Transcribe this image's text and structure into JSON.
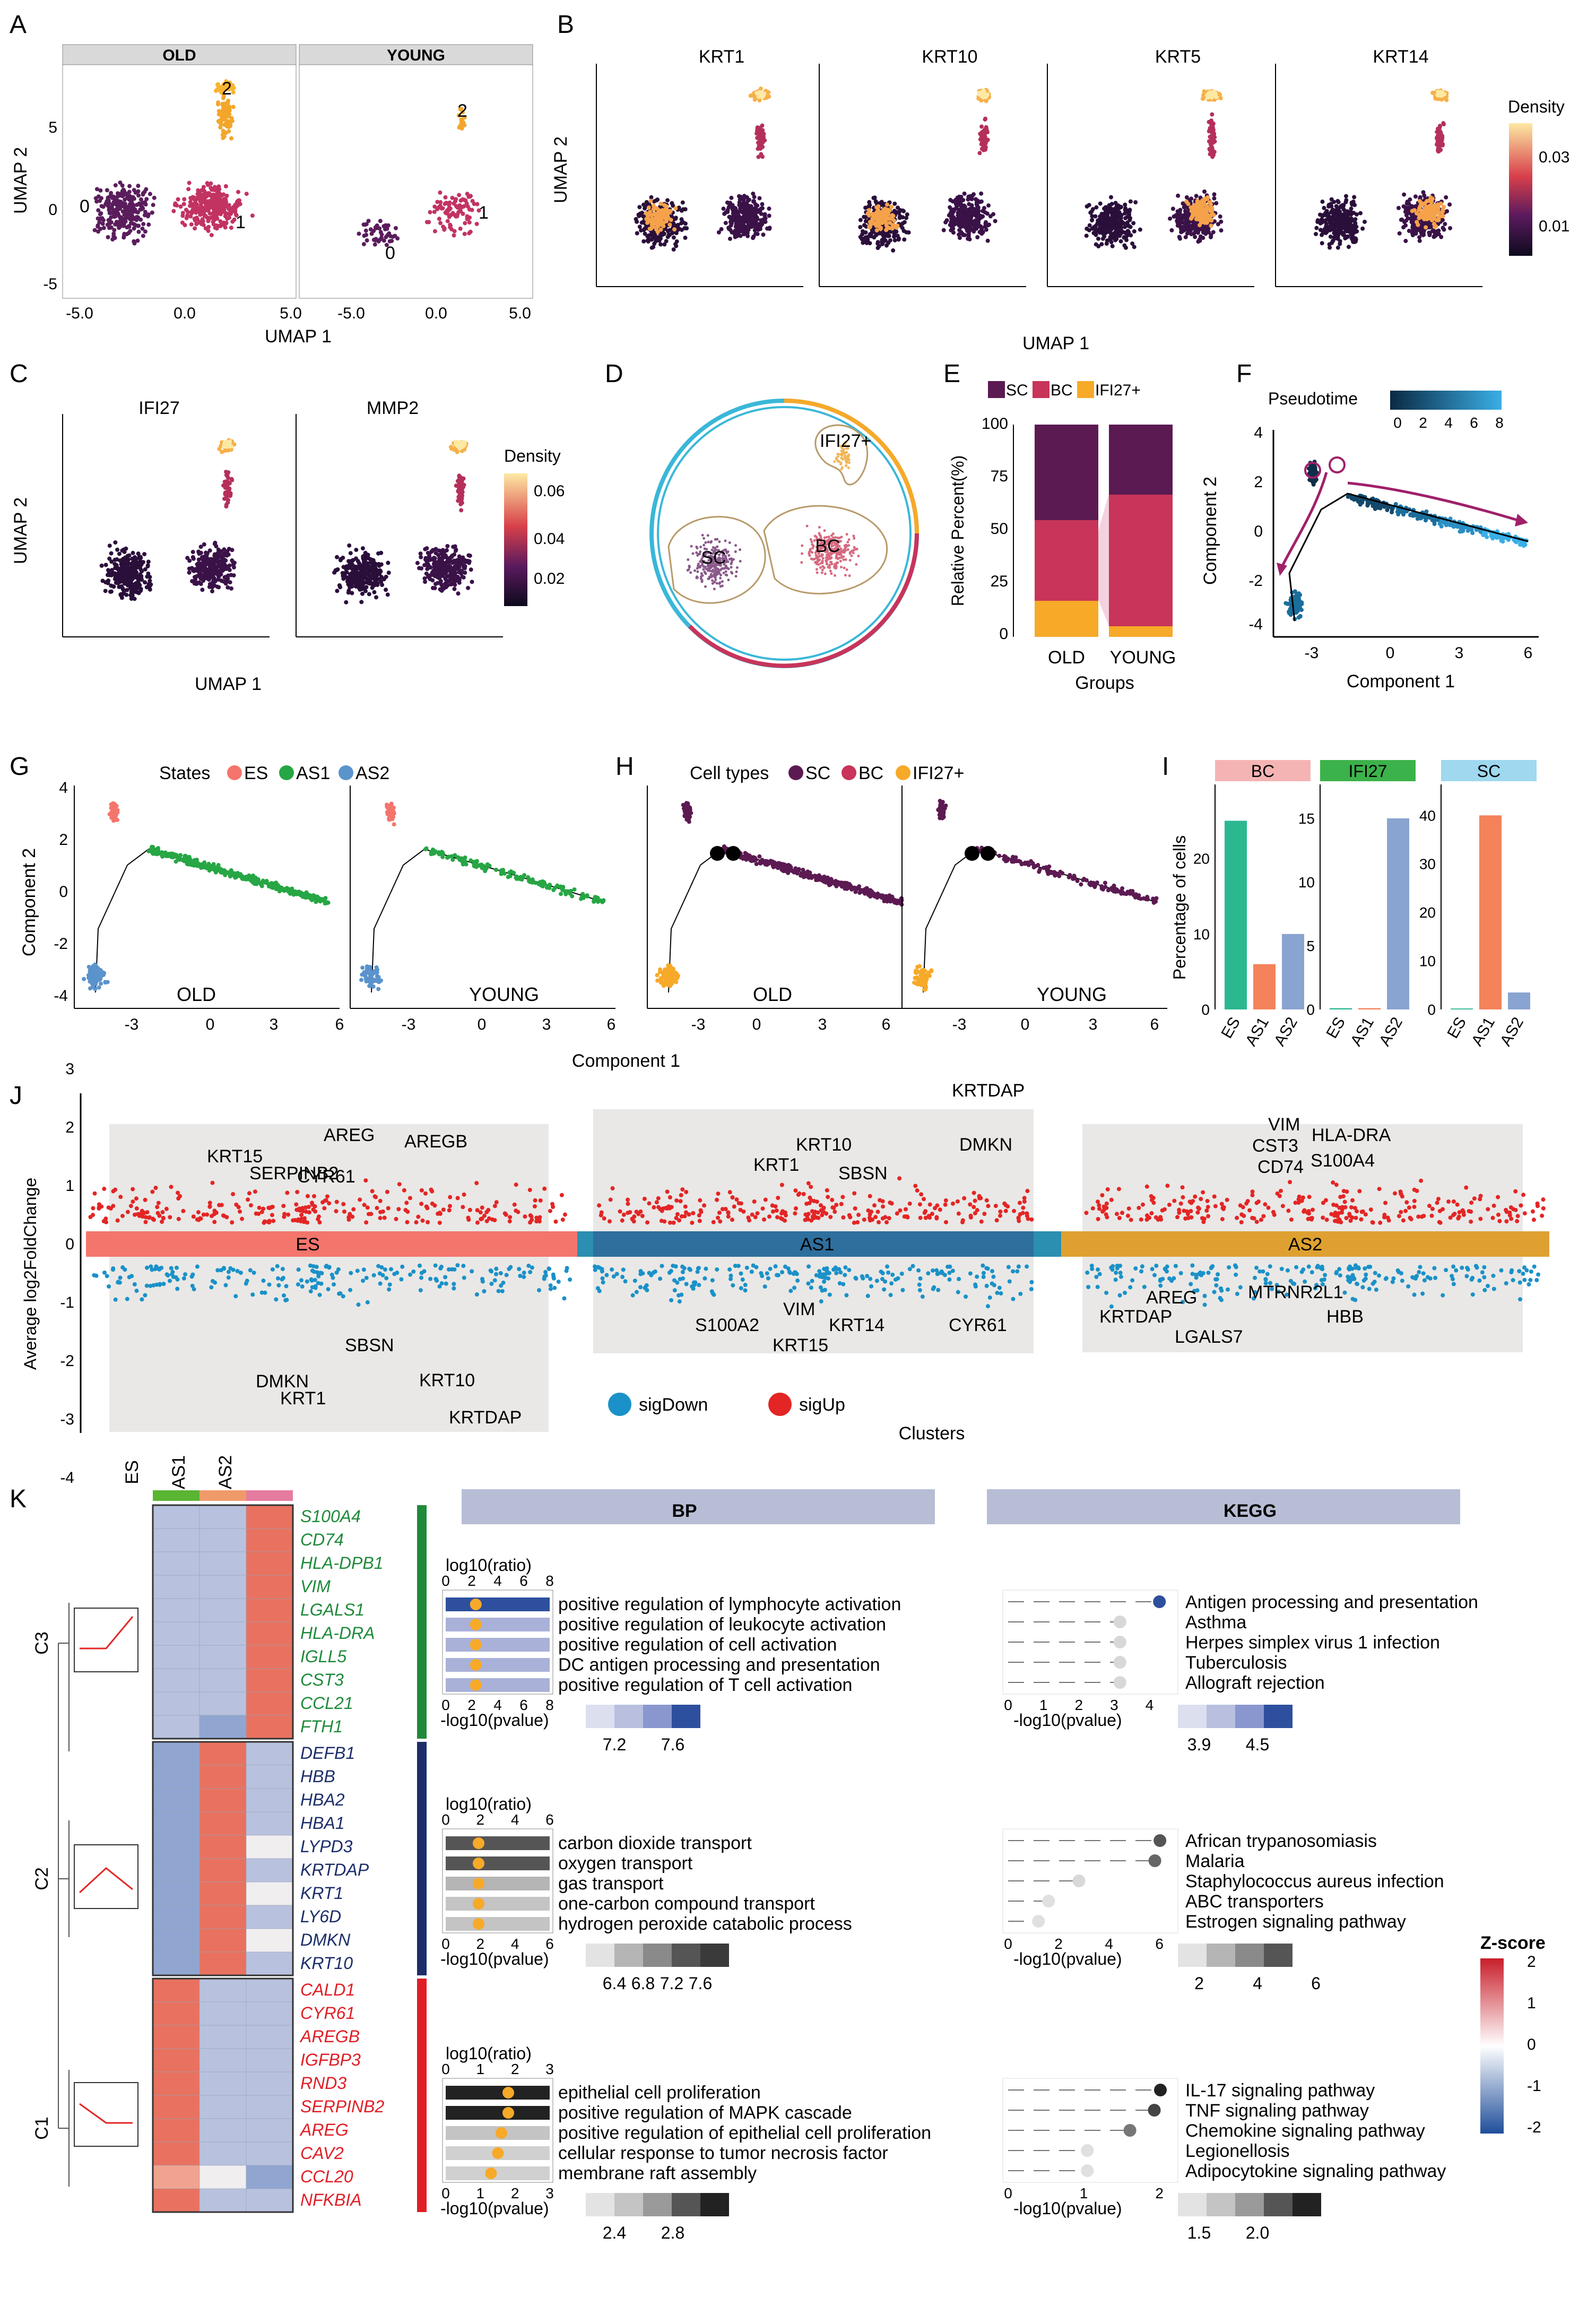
{
  "panel_letters": [
    "A",
    "B",
    "C",
    "D",
    "E",
    "F",
    "G",
    "H",
    "I",
    "J",
    "K"
  ],
  "panelA": {
    "facets": [
      "OLD",
      "YOUNG"
    ],
    "xlabel": "UMAP 1",
    "ylabel": "UMAP 2",
    "xticks": [
      "-5.0",
      "0.0",
      "5.0"
    ],
    "yticks": [
      "5",
      "0",
      "-5"
    ],
    "cluster_labels": [
      "0",
      "1",
      "2"
    ]
  },
  "panelB": {
    "genes": [
      "KRT1",
      "KRT10",
      "KRT5",
      "KRT14"
    ],
    "xlabel": "UMAP 1",
    "ylabel": "UMAP 2",
    "legend_title": "Density",
    "legend_ticks": [
      "0.03",
      "0.01"
    ]
  },
  "panelC": {
    "genes": [
      "IFI27",
      "MMP2"
    ],
    "xlabel": "UMAP 1",
    "ylabel": "UMAP 2",
    "legend_title": "Density",
    "legend_ticks": [
      "0.06",
      "0.04",
      "0.02"
    ]
  },
  "panelD": {
    "labels": [
      "IFI27+",
      "SC",
      "BC"
    ]
  },
  "panelE": {
    "ylabel": "Relative Percent(%)",
    "xlabel": "Groups",
    "legend": [
      "SC",
      "BC",
      "IFI27+"
    ],
    "categories": [
      "OLD",
      "YOUNG"
    ],
    "yticks": [
      "100",
      "75",
      "50",
      "25",
      "0"
    ]
  },
  "panelF": {
    "legend_title": "Pseudotime",
    "legend_ticks": [
      "0",
      "2",
      "4",
      "6",
      "8"
    ],
    "xlabel": "Component 1",
    "ylabel": "Component 2",
    "xticks": [
      "-3",
      "0",
      "3",
      "6"
    ],
    "yticks": [
      "4",
      "2",
      "0",
      "-2",
      "-4"
    ]
  },
  "panelG": {
    "legend_title": "States",
    "legend": [
      "ES",
      "AS1",
      "AS2"
    ],
    "groups": [
      "OLD",
      "YOUNG"
    ],
    "xlabel": "Component 1",
    "ylabel": "Component 2",
    "xticks": [
      "-3",
      "0",
      "3",
      "6"
    ],
    "yticks": [
      "4",
      "2",
      "0",
      "-2",
      "-4"
    ]
  },
  "panelH": {
    "legend_title": "Cell types",
    "legend": [
      "SC",
      "BC",
      "IFI27+"
    ],
    "groups": [
      "OLD",
      "YOUNG"
    ]
  },
  "panelI": {
    "ylabel": "Percentage of cells",
    "facets": [
      "BC",
      "IFI27",
      "SC"
    ],
    "categories": [
      "ES",
      "AS1",
      "AS2"
    ]
  },
  "panelJ": {
    "ylabel": "Average log2FoldChange",
    "xlabel": "Clusters",
    "clusters": [
      "ES",
      "AS1",
      "AS2"
    ],
    "yticks": [
      "3",
      "2",
      "1",
      "0",
      "-1",
      "-2",
      "-3",
      "-4"
    ],
    "legend": [
      "sigDown",
      "sigUp"
    ],
    "es_up": [
      "KRT15",
      "SERPINB2",
      "AREG",
      "CYR61",
      "AREGB"
    ],
    "es_down": [
      "SBSN",
      "DMKN",
      "KRT1",
      "KRT10",
      "KRTDAP"
    ],
    "as1_up": [
      "KRTDAP",
      "KRT10",
      "DMKN",
      "KRT1",
      "SBSN"
    ],
    "as1_down": [
      "S100A2",
      "VIM",
      "KRT14",
      "KRT15",
      "CYR61"
    ],
    "as2_up": [
      "VIM",
      "CST3",
      "HLA-DRA",
      "CD74",
      "S100A4"
    ],
    "as2_down": [
      "AREG",
      "KRTDAP",
      "MTRNR2L1",
      "HBB",
      "LGALS7"
    ]
  },
  "panelK": {
    "columns": [
      "ES",
      "AS1",
      "AS2"
    ],
    "rows": [
      "C3",
      "C2",
      "C1"
    ],
    "c3_genes": [
      "S100A4",
      "CD74",
      "HLA-DPB1",
      "VIM",
      "LGALS1",
      "HLA-DRA",
      "IGLL5",
      "CST3",
      "CCL21",
      "FTH1"
    ],
    "c2_genes": [
      "DEFB1",
      "HBB",
      "HBA2",
      "HBA1",
      "LYPD3",
      "KRTDAP",
      "KRT1",
      "LY6D",
      "DMKN",
      "KRT10"
    ],
    "c1_genes": [
      "CALD1",
      "CYR61",
      "AREGB",
      "IGFBP3",
      "RND3",
      "SERPINB2",
      "AREG",
      "CAV2",
      "CCL20",
      "NFKBIA"
    ],
    "bp_header": "BP",
    "kegg_header": "KEGG",
    "ratio_label": "log10(ratio)",
    "pval_label": "-log10(pvalue)",
    "bp_c3": [
      "positive regulation of lymphocyte activation",
      "positive regulation of leukocyte activation",
      "positive regulation of cell activation",
      "DC antigen processing and presentation",
      "positive regulation of T cell activation"
    ],
    "bp_c2": [
      "carbon dioxide transport",
      "oxygen transport",
      "gas transport",
      "one-carbon compound transport",
      "hydrogen peroxide catabolic process"
    ],
    "bp_c1": [
      "epithelial cell proliferation",
      "positive regulation of MAPK cascade",
      "positive regulation of epithelial cell proliferation",
      "cellular response to tumor necrosis factor",
      "membrane raft assembly"
    ],
    "kegg_c3": [
      "Antigen processing and presentation",
      "Asthma",
      "Herpes simplex virus 1 infection",
      "Tuberculosis",
      "Allograft rejection"
    ],
    "kegg_c2": [
      "African trypanosomiasis",
      "Malaria",
      "Staphylococcus aureus infection",
      "ABC transporters",
      "Estrogen signaling pathway"
    ],
    "kegg_c1": [
      "IL-17 signaling pathway",
      "TNF signaling pathway",
      "Chemokine signaling pathway",
      "Legionellosis",
      "Adipocytokine signaling pathway"
    ],
    "bp_c3_leg": [
      "7.2",
      "7.6"
    ],
    "bp_c2_leg": [
      "6.4",
      "6.8",
      "7.2",
      "7.6"
    ],
    "bp_c1_leg": [
      "2.4",
      "2.8"
    ],
    "kegg_c3_leg": [
      "3.9",
      "4.5"
    ],
    "kegg_c2_leg": [
      "2",
      "4",
      "6"
    ],
    "kegg_c1_leg": [
      "1.5",
      "2.0"
    ],
    "zscore_title": "Z-score",
    "zscore_ticks": [
      "2",
      "1",
      "0",
      "-1",
      "-2"
    ]
  },
  "colors": {
    "sc": "#5c1a52",
    "bc": "#c8345a",
    "ifi27": "#f7a928",
    "es": "#f4756c",
    "as1": "#26a644",
    "as2": "#5b93cc"
  }
}
